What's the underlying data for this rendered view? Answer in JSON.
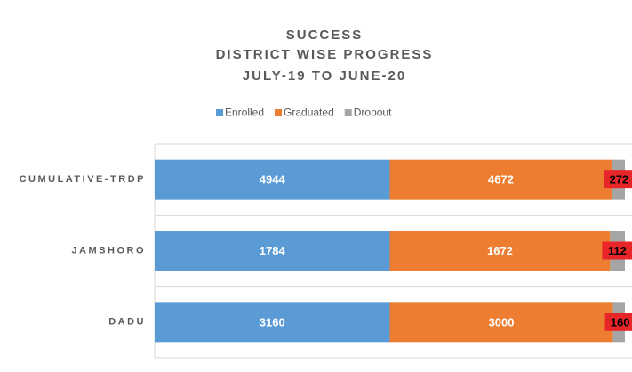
{
  "chart_data": {
    "type": "bar",
    "orientation": "horizontal",
    "stacked": "percent",
    "title": [
      "SUCCESS",
      "DISTRICT WISE PROGRESS",
      "JULY-19 TO JUNE-20"
    ],
    "categories": [
      "CUMULATIVE-TRDP",
      "JAMSHORO",
      "DADU"
    ],
    "series": [
      {
        "name": "Enrolled",
        "color": "#5b9bd5",
        "values": [
          4944,
          1784,
          3160
        ]
      },
      {
        "name": "Graduated",
        "color": "#ed7d31",
        "values": [
          4672,
          1672,
          3000
        ]
      },
      {
        "name": "Dropout",
        "color": "#a5a5a5",
        "values": [
          272,
          112,
          160
        ]
      }
    ],
    "legend": "top"
  }
}
